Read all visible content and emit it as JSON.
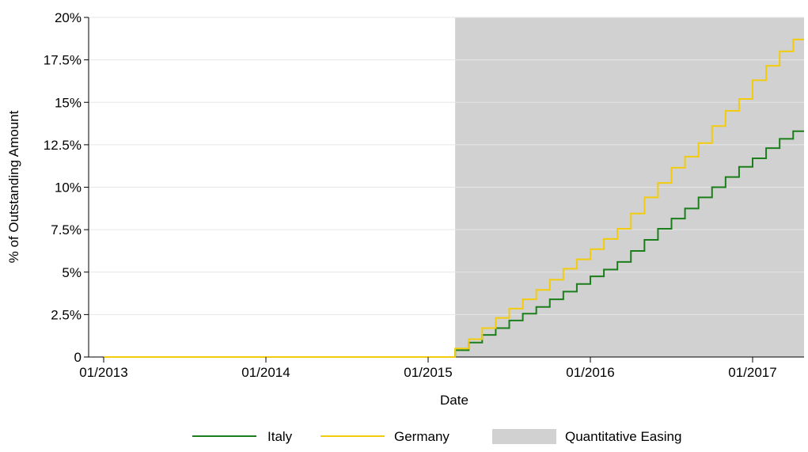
{
  "chart_data": {
    "type": "line",
    "xlabel": "Date",
    "ylabel": "% of Outstanding Amount",
    "x_ticks": [
      "01/2013",
      "01/2014",
      "01/2015",
      "01/2016",
      "01/2017"
    ],
    "x_range": [
      "2013-01",
      "2017-05"
    ],
    "y_ticks": [
      "0",
      "2.5%",
      "5%",
      "7.5%",
      "10%",
      "12.5%",
      "15%",
      "17.5%",
      "20%"
    ],
    "ylim": [
      0,
      20
    ],
    "grid": true,
    "legend_position": "bottom",
    "shaded_region": {
      "name": "Quantitative Easing",
      "start": "2015-03",
      "end": "2017-05",
      "color": "#d1d1d1"
    },
    "x": [
      "2013-01",
      "2015-02",
      "2015-03",
      "2015-04",
      "2015-05",
      "2015-06",
      "2015-07",
      "2015-08",
      "2015-09",
      "2015-10",
      "2015-11",
      "2015-12",
      "2016-01",
      "2016-02",
      "2016-03",
      "2016-04",
      "2016-05",
      "2016-06",
      "2016-07",
      "2016-08",
      "2016-09",
      "2016-10",
      "2016-11",
      "2016-12",
      "2017-01",
      "2017-02",
      "2017-03",
      "2017-04",
      "2017-05"
    ],
    "series": [
      {
        "name": "Italy",
        "color": "#1a7f1a",
        "values": [
          0,
          0,
          0.4,
          0.85,
          1.3,
          1.7,
          2.15,
          2.55,
          2.95,
          3.4,
          3.85,
          4.3,
          4.75,
          5.15,
          5.6,
          6.25,
          6.9,
          7.55,
          8.15,
          8.75,
          9.4,
          10.0,
          10.6,
          11.2,
          11.7,
          12.3,
          12.85,
          13.3,
          13.3
        ]
      },
      {
        "name": "Germany",
        "color": "#f2cc0c",
        "values": [
          0,
          0,
          0.5,
          1.05,
          1.7,
          2.3,
          2.85,
          3.4,
          3.95,
          4.55,
          5.2,
          5.75,
          6.35,
          6.95,
          7.55,
          8.45,
          9.4,
          10.25,
          11.15,
          11.8,
          12.6,
          13.6,
          14.5,
          15.2,
          16.3,
          17.15,
          18.0,
          18.7,
          18.7
        ]
      }
    ]
  }
}
